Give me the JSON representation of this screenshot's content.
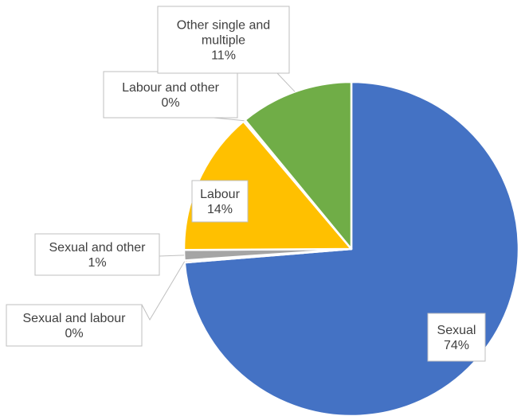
{
  "chart_data": {
    "type": "pie",
    "title": "",
    "slices": [
      {
        "label": "Sexual",
        "value": 74,
        "display": "74%",
        "color": "#4472C4"
      },
      {
        "label": "Sexual and labour",
        "value": 0.2,
        "display": "0%",
        "color": "#ED7D31"
      },
      {
        "label": "Sexual and other",
        "value": 1,
        "display": "1%",
        "color": "#A5A5A5"
      },
      {
        "label": "Labour",
        "value": 14,
        "display": "14%",
        "color": "#FFC000"
      },
      {
        "label": "Labour and other",
        "value": 0.2,
        "display": "0%",
        "color": "#5B9BD5"
      },
      {
        "label": "Other single and multiple",
        "value": 11,
        "display": "11%",
        "color": "#70AD47"
      }
    ],
    "start_angle": "12 o'clock",
    "direction": "clockwise",
    "legend": "none",
    "data_labels": "callouts with category name and percentage"
  }
}
